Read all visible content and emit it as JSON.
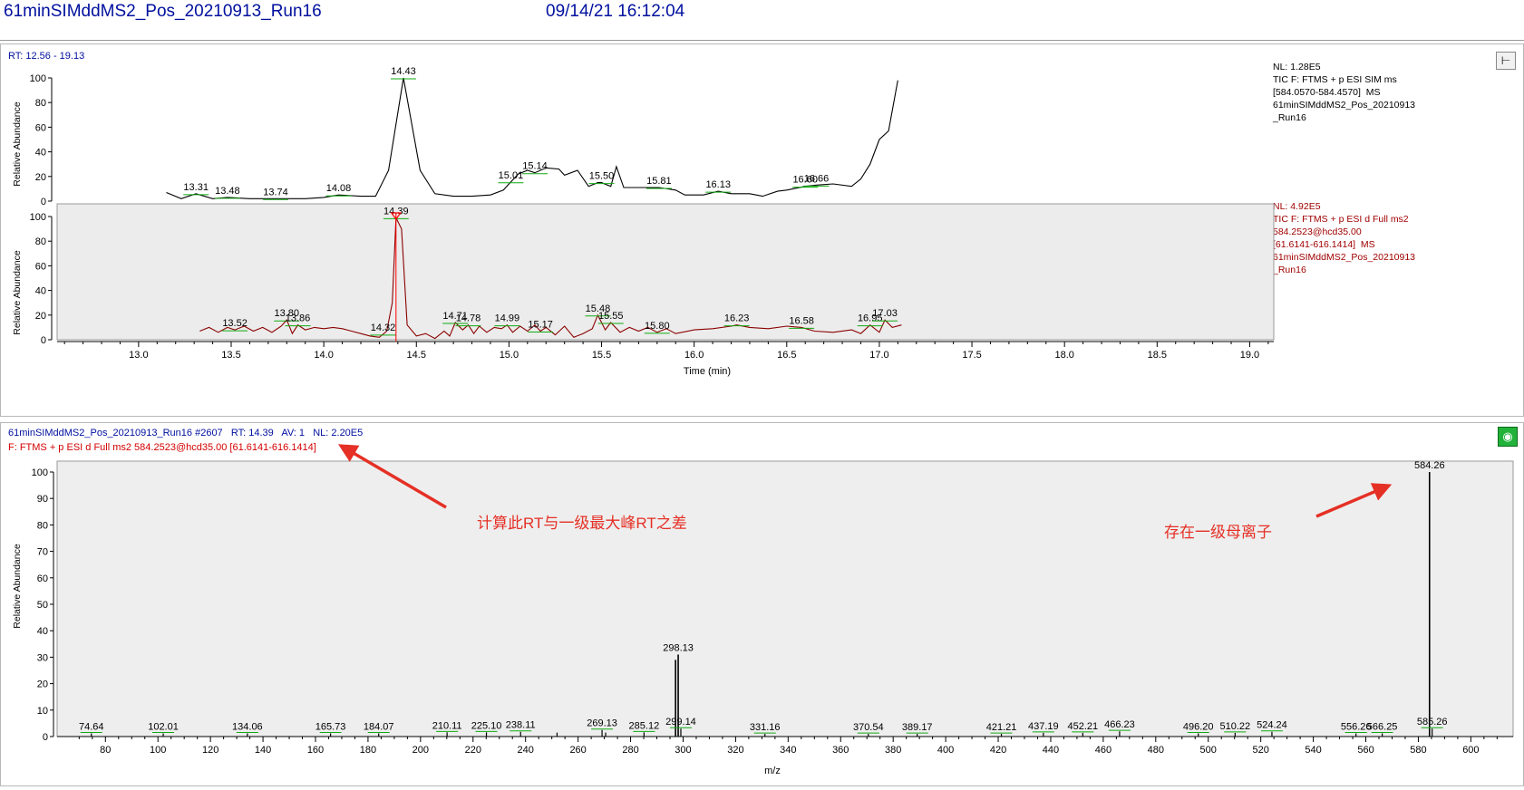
{
  "header": {
    "file_name": "61minSIMddMS2_Pos_20210913_Run16",
    "datetime": "09/14/21 16:12:04"
  },
  "chromatogram": {
    "rt_label": "RT:",
    "rt_range": "12.56 - 19.13",
    "ylabel": "Relative Abundance",
    "xlabel": "Time (min)",
    "pin_icon": "pin-icon",
    "trace1_info": [
      "NL: 1.28E5",
      "TIC F: FTMS + p ESI SIM ms",
      "[584.0570-584.4570]  MS",
      "61minSIMddMS2_Pos_20210913",
      "_Run16"
    ],
    "trace2_info": [
      "NL: 4.92E5",
      "TIC F: FTMS + p ESI d Full ms2",
      "584.2523@hcd35.00",
      "[61.6141-616.1414]  MS",
      "61minSIMddMS2_Pos_20210913",
      "_Run16"
    ],
    "colors": {
      "trace1": "#000000",
      "trace2": "#8b0000",
      "info2": "#a00000",
      "highlight": "#ececec",
      "peak_marker": "#ff0000",
      "baseline_tick": "#11aa11"
    }
  },
  "spectrum": {
    "scan_label": "61minSIMddMS2_Pos_20210913_Run16 #2607",
    "rt_label": "RT:",
    "rt_value": "14.39",
    "av_label": "AV:",
    "av_value": "1",
    "nl_label": "NL:",
    "nl_value": "2.20E5",
    "filter_text": "F: FTMS + p ESI d Full ms2 584.2523@hcd35.00 [61.6141-616.1414]",
    "ylabel": "Relative Abundance",
    "xlabel": "m/z",
    "eq_icon": "color-settings-icon"
  },
  "annotations": {
    "rt_note": "计算此RT与一级最大峰RT之差",
    "parent_note": "存在一级母离子"
  },
  "chart_data": [
    {
      "type": "line",
      "name": "chromatogram-trace-1",
      "xlabel": "Time (min)",
      "ylabel": "Relative Abundance",
      "xlim": [
        12.56,
        19.13
      ],
      "ylim": [
        0,
        100
      ],
      "x_ticks": [
        13.0,
        13.5,
        14.0,
        14.5,
        15.0,
        15.5,
        16.0,
        16.5,
        17.0,
        17.5,
        18.0,
        18.5,
        19.0
      ],
      "y_ticks": [
        0,
        20,
        40,
        60,
        80,
        100
      ],
      "points": [
        [
          13.15,
          7
        ],
        [
          13.23,
          2
        ],
        [
          13.31,
          6
        ],
        [
          13.4,
          2
        ],
        [
          13.48,
          3
        ],
        [
          13.6,
          2
        ],
        [
          13.74,
          2
        ],
        [
          13.9,
          2
        ],
        [
          14.0,
          3
        ],
        [
          14.08,
          5
        ],
        [
          14.2,
          4
        ],
        [
          14.28,
          4
        ],
        [
          14.35,
          25
        ],
        [
          14.43,
          100
        ],
        [
          14.52,
          25
        ],
        [
          14.6,
          6
        ],
        [
          14.7,
          4
        ],
        [
          14.8,
          4
        ],
        [
          14.9,
          5
        ],
        [
          14.97,
          9
        ],
        [
          15.0,
          14
        ],
        [
          15.05,
          22
        ],
        [
          15.1,
          25
        ],
        [
          15.14,
          23
        ],
        [
          15.2,
          27
        ],
        [
          15.27,
          26
        ],
        [
          15.3,
          21
        ],
        [
          15.37,
          25
        ],
        [
          15.43,
          12
        ],
        [
          15.48,
          15
        ],
        [
          15.5,
          15
        ],
        [
          15.55,
          12
        ],
        [
          15.58,
          28
        ],
        [
          15.62,
          11
        ],
        [
          15.7,
          11
        ],
        [
          15.8,
          11
        ],
        [
          15.81,
          11
        ],
        [
          15.9,
          9
        ],
        [
          15.95,
          5
        ],
        [
          16.05,
          5
        ],
        [
          16.13,
          8
        ],
        [
          16.2,
          6
        ],
        [
          16.3,
          6
        ],
        [
          16.37,
          4
        ],
        [
          16.45,
          8
        ],
        [
          16.5,
          9
        ],
        [
          16.6,
          12
        ],
        [
          16.66,
          13
        ],
        [
          16.75,
          14
        ],
        [
          16.85,
          12
        ],
        [
          16.9,
          18
        ],
        [
          16.95,
          30
        ],
        [
          17.0,
          50
        ],
        [
          17.05,
          57
        ],
        [
          17.1,
          98
        ]
      ],
      "peak_labels": [
        [
          13.31,
          "13.31"
        ],
        [
          13.48,
          "13.48"
        ],
        [
          13.74,
          "13.74"
        ],
        [
          14.08,
          "14.08"
        ],
        [
          14.43,
          "14.43"
        ],
        [
          15.01,
          "15.01"
        ],
        [
          15.14,
          "15.14"
        ],
        [
          15.5,
          "15.50"
        ],
        [
          15.81,
          "15.81"
        ],
        [
          16.13,
          "16.13"
        ],
        [
          16.6,
          "16.60"
        ],
        [
          16.66,
          "16.66"
        ]
      ]
    },
    {
      "type": "line",
      "name": "chromatogram-trace-2",
      "xlabel": "Time (min)",
      "ylabel": "Relative Abundance",
      "xlim": [
        12.56,
        19.13
      ],
      "ylim": [
        0,
        100
      ],
      "y_ticks": [
        0,
        20,
        40,
        60,
        80,
        100
      ],
      "highlight_range": [
        12.56,
        19.13
      ],
      "marker_rt": 14.39,
      "points": [
        [
          13.33,
          7
        ],
        [
          13.38,
          10
        ],
        [
          13.43,
          6
        ],
        [
          13.48,
          10
        ],
        [
          13.52,
          8
        ],
        [
          13.57,
          11
        ],
        [
          13.62,
          7
        ],
        [
          13.67,
          10
        ],
        [
          13.72,
          6
        ],
        [
          13.77,
          11
        ],
        [
          13.8,
          16
        ],
        [
          13.83,
          5
        ],
        [
          13.86,
          12
        ],
        [
          13.9,
          8
        ],
        [
          13.95,
          10
        ],
        [
          14.0,
          9
        ],
        [
          14.05,
          10
        ],
        [
          14.1,
          9
        ],
        [
          14.15,
          7
        ],
        [
          14.2,
          5
        ],
        [
          14.25,
          3
        ],
        [
          14.3,
          2
        ],
        [
          14.34,
          7
        ],
        [
          14.37,
          30
        ],
        [
          14.39,
          99
        ],
        [
          14.42,
          90
        ],
        [
          14.45,
          12
        ],
        [
          14.5,
          3
        ],
        [
          14.55,
          5
        ],
        [
          14.6,
          1
        ],
        [
          14.65,
          7
        ],
        [
          14.68,
          3
        ],
        [
          14.71,
          14
        ],
        [
          14.75,
          8
        ],
        [
          14.78,
          12
        ],
        [
          14.81,
          5
        ],
        [
          14.84,
          11
        ],
        [
          14.88,
          6
        ],
        [
          14.92,
          10
        ],
        [
          14.96,
          9
        ],
        [
          14.99,
          12
        ],
        [
          15.02,
          6
        ],
        [
          15.06,
          11
        ],
        [
          15.1,
          7
        ],
        [
          15.14,
          12
        ],
        [
          15.17,
          7
        ],
        [
          15.2,
          10
        ],
        [
          15.25,
          4
        ],
        [
          15.3,
          11
        ],
        [
          15.35,
          2
        ],
        [
          15.4,
          5
        ],
        [
          15.45,
          9
        ],
        [
          15.48,
          20
        ],
        [
          15.52,
          8
        ],
        [
          15.55,
          14
        ],
        [
          15.6,
          6
        ],
        [
          15.65,
          10
        ],
        [
          15.7,
          7
        ],
        [
          15.75,
          10
        ],
        [
          15.8,
          6
        ],
        [
          15.85,
          9
        ],
        [
          15.9,
          5
        ],
        [
          16.0,
          8
        ],
        [
          16.1,
          9
        ],
        [
          16.2,
          11
        ],
        [
          16.23,
          12
        ],
        [
          16.3,
          10
        ],
        [
          16.4,
          9
        ],
        [
          16.5,
          11
        ],
        [
          16.58,
          10
        ],
        [
          16.65,
          7
        ],
        [
          16.75,
          6
        ],
        [
          16.85,
          8
        ],
        [
          16.9,
          5
        ],
        [
          16.95,
          12
        ],
        [
          17.0,
          6
        ],
        [
          17.03,
          16
        ],
        [
          17.07,
          10
        ],
        [
          17.12,
          12
        ]
      ],
      "peak_labels": [
        [
          13.52,
          "13.52"
        ],
        [
          13.8,
          "13.80"
        ],
        [
          13.86,
          "13.86"
        ],
        [
          14.32,
          "14.32"
        ],
        [
          14.39,
          "14.39"
        ],
        [
          14.71,
          "14.71"
        ],
        [
          14.78,
          "14.78"
        ],
        [
          14.99,
          "14.99"
        ],
        [
          15.17,
          "15.17"
        ],
        [
          15.48,
          "15.48"
        ],
        [
          15.55,
          "15.55"
        ],
        [
          15.8,
          "15.80"
        ],
        [
          16.23,
          "16.23"
        ],
        [
          16.58,
          "16.58"
        ],
        [
          16.95,
          "16.95"
        ],
        [
          17.03,
          "17.03"
        ]
      ]
    },
    {
      "type": "bar",
      "name": "ms2-spectrum",
      "xlabel": "m/z",
      "ylabel": "Relative Abundance",
      "xlim": [
        61.6,
        616.1
      ],
      "ylim": [
        0,
        100
      ],
      "x_ticks": [
        80,
        100,
        120,
        140,
        160,
        180,
        200,
        220,
        240,
        260,
        280,
        300,
        320,
        340,
        360,
        380,
        400,
        420,
        440,
        460,
        480,
        500,
        520,
        540,
        560,
        580,
        600
      ],
      "y_ticks": [
        0,
        10,
        20,
        30,
        40,
        50,
        60,
        70,
        80,
        90,
        100
      ],
      "peaks": [
        [
          74.64,
          1.2
        ],
        [
          102.01,
          1.2
        ],
        [
          134.06,
          1.2
        ],
        [
          165.73,
          1.2
        ],
        [
          184.07,
          1.2
        ],
        [
          210.11,
          1.6
        ],
        [
          225.1,
          1.6
        ],
        [
          238.11,
          1.8
        ],
        [
          252.0,
          1.5
        ],
        [
          269.13,
          2.5
        ],
        [
          270.5,
          1.5
        ],
        [
          285.12,
          1.6
        ],
        [
          297.12,
          29
        ],
        [
          298.13,
          31
        ],
        [
          299.14,
          3
        ],
        [
          331.16,
          1.0
        ],
        [
          370.54,
          1.0
        ],
        [
          389.17,
          1.0
        ],
        [
          421.21,
          1.0
        ],
        [
          437.19,
          1.4
        ],
        [
          452.21,
          1.4
        ],
        [
          466.23,
          2.0
        ],
        [
          496.2,
          1.2
        ],
        [
          510.22,
          1.4
        ],
        [
          524.24,
          1.8
        ],
        [
          556.26,
          1.2
        ],
        [
          566.25,
          1.2
        ],
        [
          584.26,
          100
        ],
        [
          585.26,
          3
        ]
      ],
      "peak_labels": [
        [
          74.64,
          "74.64"
        ],
        [
          102.01,
          "102.01"
        ],
        [
          134.06,
          "134.06"
        ],
        [
          165.73,
          "165.73"
        ],
        [
          184.07,
          "184.07"
        ],
        [
          210.11,
          "210.11"
        ],
        [
          225.1,
          "225.10"
        ],
        [
          238.11,
          "238.11"
        ],
        [
          269.13,
          "269.13"
        ],
        [
          285.12,
          "285.12"
        ],
        [
          298.13,
          "298.13"
        ],
        [
          299.14,
          "299.14"
        ],
        [
          331.16,
          "331.16"
        ],
        [
          370.54,
          "370.54"
        ],
        [
          389.17,
          "389.17"
        ],
        [
          421.21,
          "421.21"
        ],
        [
          437.19,
          "437.19"
        ],
        [
          452.21,
          "452.21"
        ],
        [
          466.23,
          "466.23"
        ],
        [
          496.2,
          "496.20"
        ],
        [
          510.22,
          "510.22"
        ],
        [
          524.24,
          "524.24"
        ],
        [
          556.26,
          "556.26"
        ],
        [
          566.25,
          "566.25"
        ],
        [
          584.26,
          "584.26"
        ],
        [
          585.26,
          "585.26"
        ]
      ]
    }
  ]
}
